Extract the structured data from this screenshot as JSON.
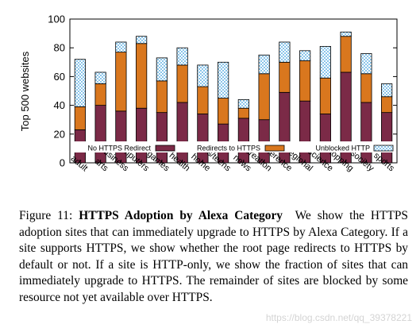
{
  "chart_data": {
    "type": "bar",
    "stacked": true,
    "ylabel": "Top 500 websites",
    "xlabel": "",
    "ylim": [
      0,
      100
    ],
    "yticks": [
      0,
      20,
      40,
      60,
      80,
      100
    ],
    "categories": [
      "adult",
      "arts",
      "business",
      "computers",
      "games",
      "health",
      "home",
      "kids/teens",
      "news",
      "recreation",
      "reference",
      "regional",
      "science",
      "shopping",
      "society",
      "sports"
    ],
    "series": [
      {
        "name": "No HTTPS Redirect",
        "color": "#7b2a47",
        "pattern": "solid",
        "values": [
          23,
          40,
          36,
          38,
          35,
          42,
          34,
          27,
          31,
          30,
          49,
          43,
          34,
          63,
          42,
          35
        ]
      },
      {
        "name": "Redirects to HTTPS",
        "color": "#d9771e",
        "pattern": "solid",
        "values": [
          16,
          15,
          41,
          45,
          22,
          26,
          19,
          18,
          7,
          32,
          21,
          28,
          25,
          25,
          20,
          11
        ]
      },
      {
        "name": "Unblocked HTTP",
        "color": "#8ac5ea",
        "pattern": "checker",
        "values": [
          33,
          8,
          7,
          5,
          16,
          12,
          15,
          25,
          6,
          13,
          14,
          7,
          22,
          3,
          14,
          9
        ]
      }
    ],
    "grid": false,
    "legend_position": "bottom-inside"
  },
  "caption": {
    "label": "Figure 11:",
    "title": "HTTPS Adoption by Alexa Category",
    "body": "We show the HTTPS adoption sites that can immediately upgrade to HTTPS by Alexa Category. If a site supports HTTPS, we show whether the root page redirects to HTTPS by default or not. If a site is HTTP-only, we show the fraction of sites that can immediately upgrade to HTTPS. The remainder of sites are blocked by some resource not yet available over HTTPS."
  },
  "watermark": "https://blog.csdn.net/qq_39378221"
}
